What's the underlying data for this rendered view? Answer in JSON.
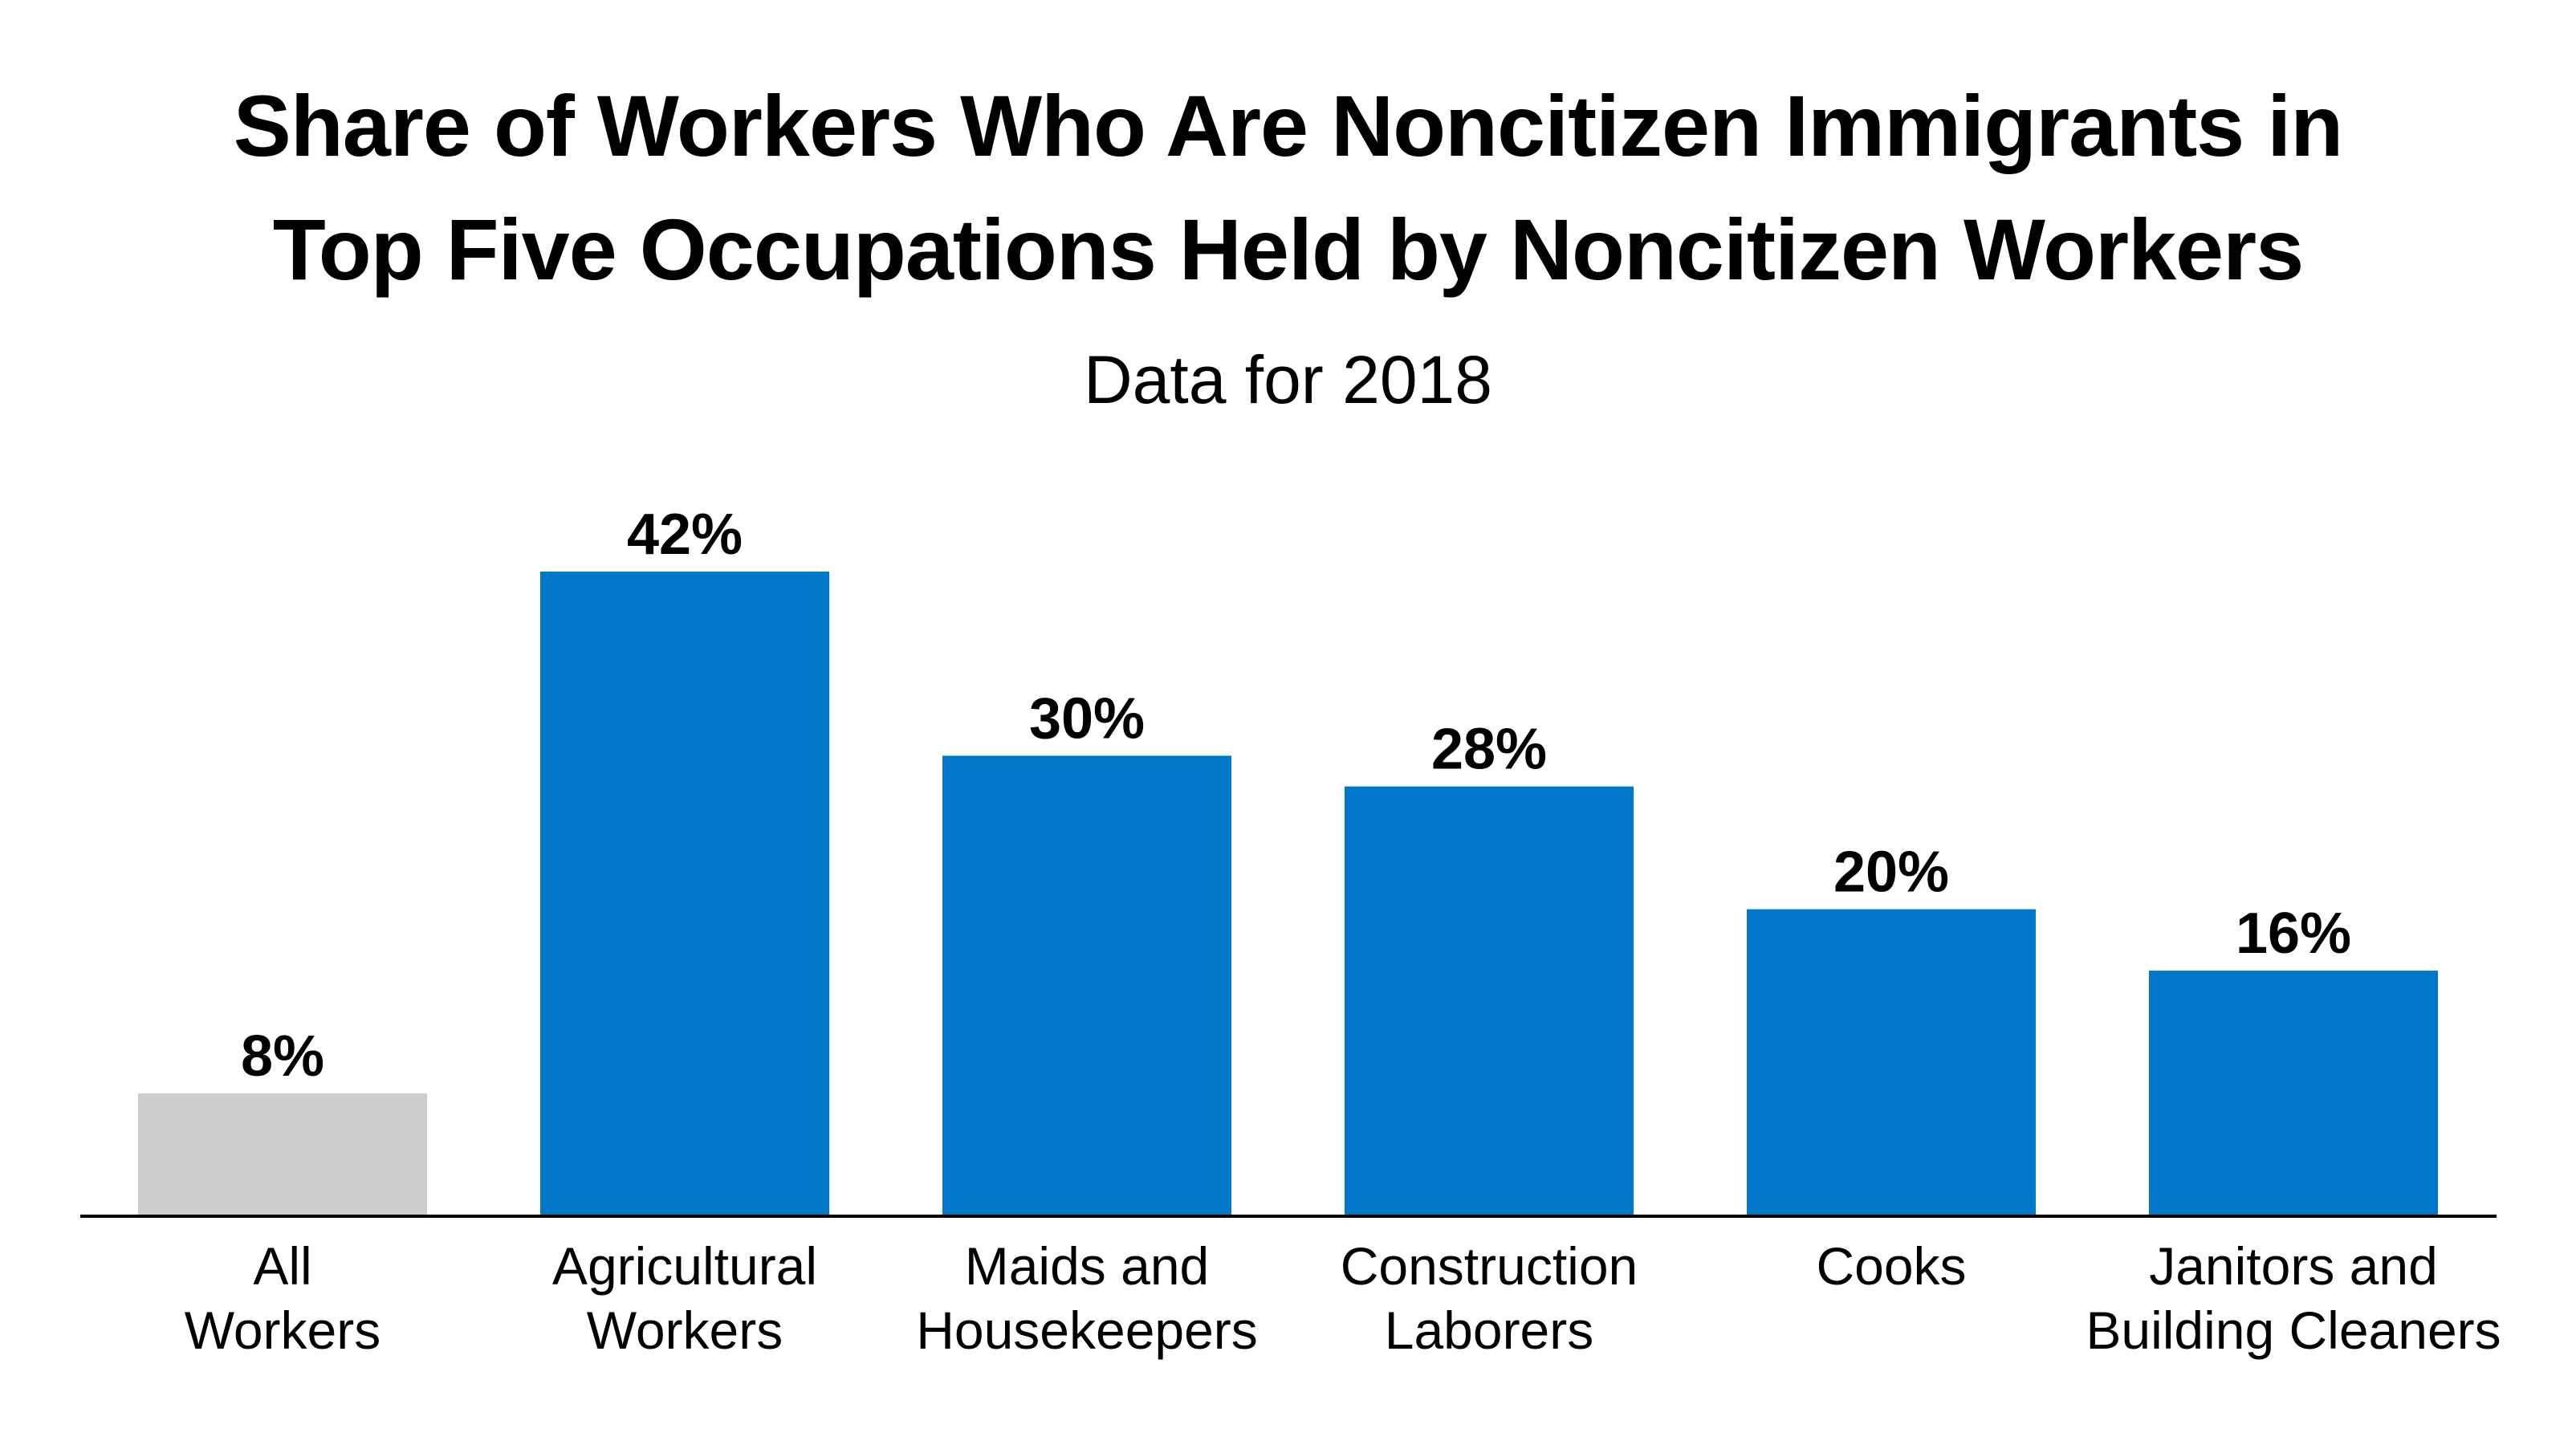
{
  "chart_data": {
    "type": "bar",
    "title_lines": [
      "Share of Workers Who Are Noncitizen Immigrants in",
      "Top Five Occupations Held by Noncitizen Workers"
    ],
    "subtitle": "Data for 2018",
    "xlabel": "",
    "ylabel": "",
    "categories": [
      [
        "All",
        "Workers"
      ],
      [
        "Agricultural",
        "Workers"
      ],
      [
        "Maids and",
        "Housekeepers"
      ],
      [
        "Construction",
        "Laborers"
      ],
      [
        "Cooks"
      ],
      [
        "Janitors and",
        "Building Cleaners"
      ]
    ],
    "values": [
      8,
      42,
      30,
      28,
      20,
      16
    ],
    "value_labels": [
      "8%",
      "42%",
      "30%",
      "28%",
      "20%",
      "16%"
    ],
    "bar_colors": [
      "#cccccc",
      "#0077c8",
      "#0077c8",
      "#0077c8",
      "#0077c8",
      "#0077c8"
    ],
    "ylim": [
      0,
      42
    ],
    "grid": false,
    "legend": "none"
  }
}
